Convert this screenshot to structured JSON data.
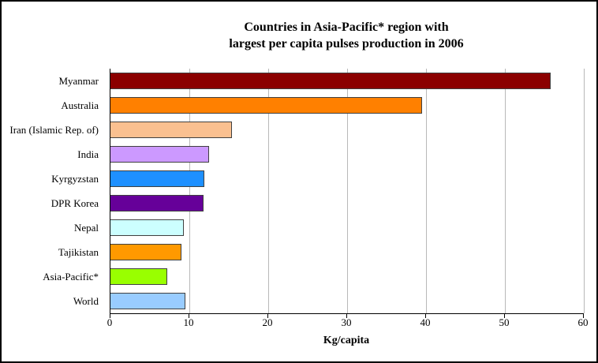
{
  "chart_data": {
    "type": "bar",
    "orientation": "horizontal",
    "title_lines": [
      "Countries in Asia-Pacific* region with",
      "largest per capita pulses production in 2006"
    ],
    "xlabel": "Kg/capita",
    "ylabel": "",
    "xlim": [
      0,
      60
    ],
    "xticks": [
      0,
      10,
      20,
      30,
      40,
      50,
      60
    ],
    "grid": true,
    "legend": false,
    "categories": [
      "Myanmar",
      "Australia",
      "Iran (Islamic Rep. of)",
      "India",
      "Kyrgyzstan",
      "DPR Korea",
      "Nepal",
      "Tajikistan",
      "Asia-Pacific*",
      "World"
    ],
    "values": [
      55.8,
      39.5,
      15.4,
      12.5,
      11.9,
      11.8,
      9.3,
      9.0,
      7.2,
      9.5
    ],
    "bar_colors": [
      "#8b0000",
      "#ff8000",
      "#fac090",
      "#cc99ff",
      "#1e90ff",
      "#660099",
      "#ccffff",
      "#ff9900",
      "#99ff00",
      "#99ccff"
    ],
    "gridline_color": "#b8b8b8"
  }
}
